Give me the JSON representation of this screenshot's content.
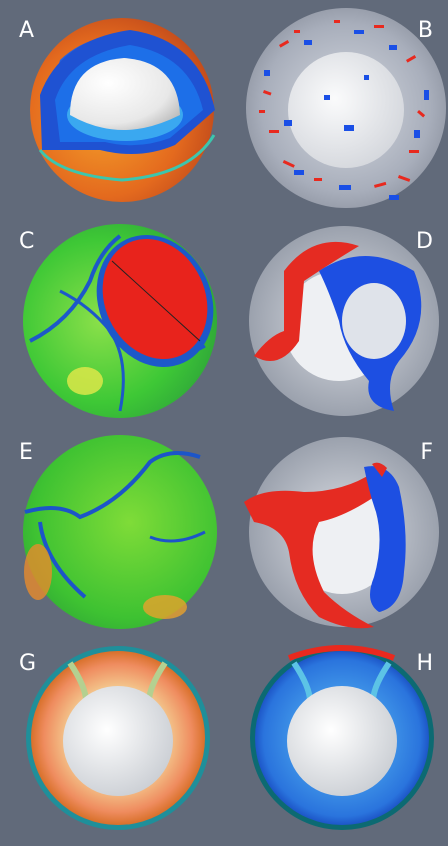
{
  "figure": {
    "background": "#616a7a",
    "panels": [
      {
        "label": "A",
        "content": "cutaway-sphere"
      },
      {
        "label": "B",
        "content": "translucent-sphere-with-plumes"
      },
      {
        "label": "C",
        "content": "sphere-with-red-cap"
      },
      {
        "label": "D",
        "content": "red-blue-isosurfaces"
      },
      {
        "label": "E",
        "content": "green-sphere-with-blue-lines"
      },
      {
        "label": "F",
        "content": "red-blue-isosurfaces"
      },
      {
        "label": "G",
        "content": "equatorial-slice-warm"
      },
      {
        "label": "H",
        "content": "equatorial-slice-cool"
      }
    ],
    "colors": {
      "hot": "#e8291e",
      "cold": "#1a4fe6",
      "mid": "#33c12f",
      "inner_core": "#f2f2f2",
      "label_text": "#ffffff"
    }
  }
}
